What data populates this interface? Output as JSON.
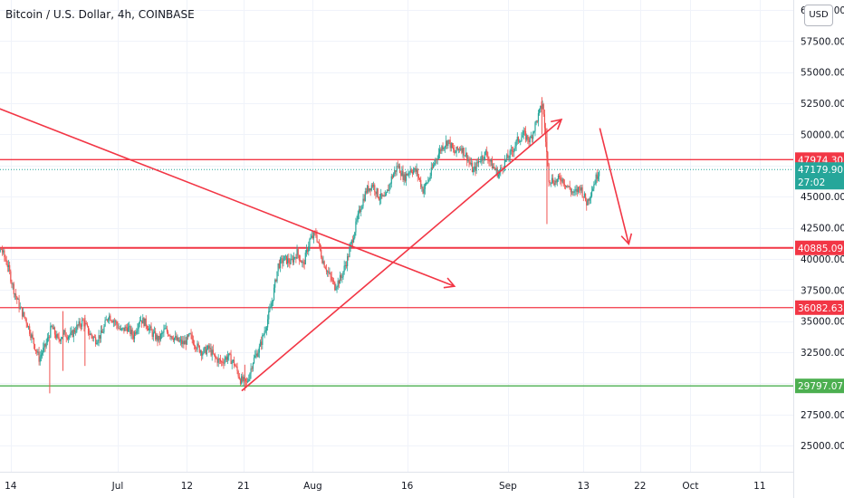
{
  "chart_title": "Bitcoin / U.S. Dollar, 4h, COINBASE",
  "currency_button": "USD",
  "colors": {
    "up": "#26a69a",
    "down": "#ef5350",
    "drawing": "#f23645",
    "support_green": "#4caf50",
    "last_price_bg": "#26a69a"
  },
  "chart_data": {
    "type": "candlestick",
    "title": "Bitcoin / U.S. Dollar, 4h, COINBASE",
    "ylim": [
      22900,
      60800
    ],
    "y_ticks": [
      {
        "value": 25000,
        "label": "25000.00"
      },
      {
        "value": 27500,
        "label": "27500.00"
      },
      {
        "value": 30000,
        "label": "30000.00"
      },
      {
        "value": 32500,
        "label": "32500.00"
      },
      {
        "value": 35000,
        "label": "35000.00"
      },
      {
        "value": 37500,
        "label": "37500.00"
      },
      {
        "value": 40000,
        "label": "40000.00"
      },
      {
        "value": 42500,
        "label": "42500.00"
      },
      {
        "value": 45000,
        "label": "45000.00"
      },
      {
        "value": 47500,
        "label": "47500.00"
      },
      {
        "value": 50000,
        "label": "50000.00"
      },
      {
        "value": 52500,
        "label": "52500.00"
      },
      {
        "value": 55000,
        "label": "55000.00"
      },
      {
        "value": 57500,
        "label": "57500.00"
      },
      {
        "value": 60000,
        "label": "60000.00"
      }
    ],
    "x_ticks": [
      {
        "day": 14,
        "label": "14"
      },
      {
        "day": 31,
        "label": "Jul"
      },
      {
        "day": 42,
        "label": "12"
      },
      {
        "day": 51,
        "label": "21"
      },
      {
        "day": 62,
        "label": "Aug"
      },
      {
        "day": 77,
        "label": "16"
      },
      {
        "day": 93,
        "label": "Sep"
      },
      {
        "day": 105,
        "label": "13"
      },
      {
        "day": 114,
        "label": "22"
      },
      {
        "day": 122,
        "label": "Oct"
      },
      {
        "day": 133,
        "label": "11"
      }
    ],
    "price_path": [
      [
        9.5,
        36500
      ],
      [
        10.5,
        38500
      ],
      [
        11.5,
        40000
      ],
      [
        12.5,
        40800
      ],
      [
        13.5,
        39500
      ],
      [
        14.5,
        37500
      ],
      [
        15.5,
        36000
      ],
      [
        16.5,
        35000
      ],
      [
        17.5,
        33500
      ],
      [
        18.5,
        32000
      ],
      [
        19.5,
        33000
      ],
      [
        20.5,
        34500
      ],
      [
        21.5,
        33500
      ],
      [
        22.5,
        34000
      ],
      [
        23.5,
        33800
      ],
      [
        24.5,
        34500
      ],
      [
        25.5,
        35000
      ],
      [
        26.5,
        34000
      ],
      [
        27.5,
        33500
      ],
      [
        28.5,
        34000
      ],
      [
        29.5,
        35500
      ],
      [
        30.5,
        35000
      ],
      [
        31.5,
        34200
      ],
      [
        32.5,
        34500
      ],
      [
        33.5,
        33800
      ],
      [
        34.5,
        35200
      ],
      [
        35.5,
        34800
      ],
      [
        36.5,
        34000
      ],
      [
        37.5,
        33500
      ],
      [
        38.5,
        34300
      ],
      [
        39.5,
        33900
      ],
      [
        40.5,
        33400
      ],
      [
        41.5,
        33200
      ],
      [
        42.5,
        33800
      ],
      [
        43.5,
        33000
      ],
      [
        44.5,
        32500
      ],
      [
        45.5,
        32800
      ],
      [
        46.5,
        32000
      ],
      [
        47.5,
        31700
      ],
      [
        48.5,
        32200
      ],
      [
        49.5,
        31600
      ],
      [
        50.5,
        30300
      ],
      [
        51.5,
        30000
      ],
      [
        52.5,
        31800
      ],
      [
        53.5,
        32800
      ],
      [
        54.5,
        34500
      ],
      [
        55.5,
        36500
      ],
      [
        56.5,
        39500
      ],
      [
        57.5,
        40000
      ],
      [
        58.5,
        39700
      ],
      [
        59.5,
        40500
      ],
      [
        60.5,
        39500
      ],
      [
        61.5,
        41500
      ],
      [
        62.5,
        42000
      ],
      [
        63.5,
        40000
      ],
      [
        64.5,
        38800
      ],
      [
        65.5,
        37800
      ],
      [
        66.5,
        38500
      ],
      [
        67.5,
        40000
      ],
      [
        68.5,
        42000
      ],
      [
        69.5,
        44000
      ],
      [
        70.5,
        45500
      ],
      [
        71.5,
        46000
      ],
      [
        72.5,
        45000
      ],
      [
        73.5,
        44800
      ],
      [
        74.5,
        46500
      ],
      [
        75.5,
        47500
      ],
      [
        76.5,
        46500
      ],
      [
        77.5,
        47200
      ],
      [
        78.5,
        47000
      ],
      [
        79.5,
        45500
      ],
      [
        80.5,
        46500
      ],
      [
        81.5,
        48000
      ],
      [
        82.5,
        49000
      ],
      [
        83.5,
        49500
      ],
      [
        84.5,
        48500
      ],
      [
        85.5,
        49000
      ],
      [
        86.5,
        48200
      ],
      [
        87.5,
        47000
      ],
      [
        88.5,
        48000
      ],
      [
        89.5,
        48500
      ],
      [
        90.5,
        47500
      ],
      [
        91.5,
        46800
      ],
      [
        92.5,
        47800
      ],
      [
        93.5,
        48500
      ],
      [
        94.5,
        49500
      ],
      [
        95.5,
        50000
      ],
      [
        96.5,
        49500
      ],
      [
        97.5,
        51000
      ],
      [
        98.5,
        52500
      ],
      [
        99.5,
        46500
      ],
      [
        100.5,
        46200
      ],
      [
        101.5,
        46500
      ],
      [
        102.5,
        45800
      ],
      [
        103.5,
        45200
      ],
      [
        104.5,
        45800
      ],
      [
        105.5,
        44500
      ],
      [
        106.5,
        45800
      ],
      [
        107.5,
        47200
      ]
    ],
    "wick_events": [
      {
        "day": 20.2,
        "low": 29200,
        "high": 33500
      },
      {
        "day": 22.3,
        "low": 31000,
        "high": 35800
      },
      {
        "day": 25.8,
        "low": 31400,
        "high": 35500
      },
      {
        "day": 51.2,
        "low": 29400,
        "high": 31500
      },
      {
        "day": 99.2,
        "low": 42800,
        "high": 50500
      },
      {
        "day": 98.4,
        "low": 50000,
        "high": 53000
      }
    ],
    "horizontal_levels": [
      {
        "price": 47974.3,
        "label": "47974.30",
        "color": "#f23645"
      },
      {
        "price": 40885.09,
        "label": "40885.09",
        "color": "#f23645"
      },
      {
        "price": 36082.63,
        "label": "36082.63",
        "color": "#f23645"
      },
      {
        "price": 29797.07,
        "label": "29797.07",
        "color": "#4caf50"
      }
    ],
    "trend_lines": [
      {
        "from": [
          7.5,
          53000
        ],
        "to": [
          84.5,
          37800
        ],
        "arrow": true
      },
      {
        "from": [
          50.7,
          29400
        ],
        "to": [
          101.5,
          51200
        ],
        "arrow": true
      },
      {
        "from": [
          107.6,
          50500
        ],
        "to": [
          112.2,
          41200
        ],
        "arrow": true
      }
    ],
    "last_price": {
      "price": 47179.9,
      "label": "47179.90",
      "countdown": "27:02"
    }
  }
}
